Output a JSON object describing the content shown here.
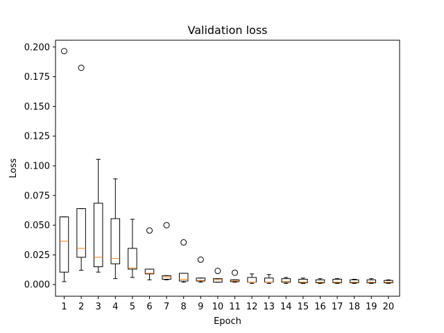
{
  "chart_data": {
    "type": "box",
    "title": "Validation loss",
    "xlabel": "Epoch",
    "ylabel": "Loss",
    "ylim": [
      -0.0098,
      0.2057
    ],
    "yticks": [
      "0.000",
      "0.025",
      "0.050",
      "0.075",
      "0.100",
      "0.125",
      "0.150",
      "0.175",
      "0.200"
    ],
    "ytick_values": [
      0,
      0.025,
      0.05,
      0.075,
      0.1,
      0.125,
      0.15,
      0.175,
      0.2
    ],
    "categories": [
      "1",
      "2",
      "3",
      "4",
      "5",
      "6",
      "7",
      "8",
      "9",
      "10",
      "11",
      "12",
      "13",
      "14",
      "15",
      "16",
      "17",
      "18",
      "19",
      "20"
    ],
    "boxes": [
      {
        "whislo": 0.0025,
        "q1": 0.0105,
        "med": 0.0365,
        "q3": 0.057,
        "whishi": 0.057,
        "fliers": [
          0.1965
        ]
      },
      {
        "whislo": 0.012,
        "q1": 0.023,
        "med": 0.0305,
        "q3": 0.064,
        "whishi": 0.064,
        "fliers": [
          0.1825
        ]
      },
      {
        "whislo": 0.0105,
        "q1": 0.015,
        "med": 0.023,
        "q3": 0.0685,
        "whishi": 0.1055,
        "fliers": []
      },
      {
        "whislo": 0.005,
        "q1": 0.0175,
        "med": 0.022,
        "q3": 0.0555,
        "whishi": 0.089,
        "fliers": []
      },
      {
        "whislo": 0.006,
        "q1": 0.013,
        "med": 0.014,
        "q3": 0.0305,
        "whishi": 0.055,
        "fliers": []
      },
      {
        "whislo": 0.004,
        "q1": 0.009,
        "med": 0.0095,
        "q3": 0.013,
        "whishi": 0.013,
        "fliers": [
          0.0455
        ]
      },
      {
        "whislo": 0.004,
        "q1": 0.0045,
        "med": 0.0065,
        "q3": 0.0075,
        "whishi": 0.0075,
        "fliers": [
          0.05
        ]
      },
      {
        "whislo": 0.002,
        "q1": 0.003,
        "med": 0.0045,
        "q3": 0.0095,
        "whishi": 0.0095,
        "fliers": [
          0.0355
        ]
      },
      {
        "whislo": 0.002,
        "q1": 0.003,
        "med": 0.0035,
        "q3": 0.0055,
        "whishi": 0.0055,
        "fliers": [
          0.021
        ]
      },
      {
        "whislo": 0.002,
        "q1": 0.002,
        "med": 0.004,
        "q3": 0.005,
        "whishi": 0.005,
        "fliers": [
          0.0115
        ]
      },
      {
        "whislo": 0.002,
        "q1": 0.0025,
        "med": 0.003,
        "q3": 0.004,
        "whishi": 0.004,
        "fliers": [
          0.01
        ]
      },
      {
        "whislo": 0.001,
        "q1": 0.002,
        "med": 0.002,
        "q3": 0.006,
        "whishi": 0.009,
        "fliers": []
      },
      {
        "whislo": 0.001,
        "q1": 0.002,
        "med": 0.002,
        "q3": 0.0055,
        "whishi": 0.0085,
        "fliers": []
      },
      {
        "whislo": 0.001,
        "q1": 0.002,
        "med": 0.0025,
        "q3": 0.005,
        "whishi": 0.006,
        "fliers": []
      },
      {
        "whislo": 0.001,
        "q1": 0.0015,
        "med": 0.002,
        "q3": 0.0045,
        "whishi": 0.0055,
        "fliers": []
      },
      {
        "whislo": 0.001,
        "q1": 0.0015,
        "med": 0.002,
        "q3": 0.004,
        "whishi": 0.005,
        "fliers": []
      },
      {
        "whislo": 0.001,
        "q1": 0.0015,
        "med": 0.002,
        "q3": 0.0045,
        "whishi": 0.005,
        "fliers": []
      },
      {
        "whislo": 0.001,
        "q1": 0.0015,
        "med": 0.002,
        "q3": 0.004,
        "whishi": 0.0045,
        "fliers": []
      },
      {
        "whislo": 0.001,
        "q1": 0.0015,
        "med": 0.002,
        "q3": 0.004,
        "whishi": 0.005,
        "fliers": []
      },
      {
        "whislo": 0.001,
        "q1": 0.0015,
        "med": 0.002,
        "q3": 0.0035,
        "whishi": 0.004,
        "fliers": []
      }
    ],
    "grid": false,
    "legend": "none",
    "colors": {
      "box": "#000000",
      "median": "#ff7f0e",
      "flier": "#000000",
      "background": "#ffffff"
    }
  }
}
